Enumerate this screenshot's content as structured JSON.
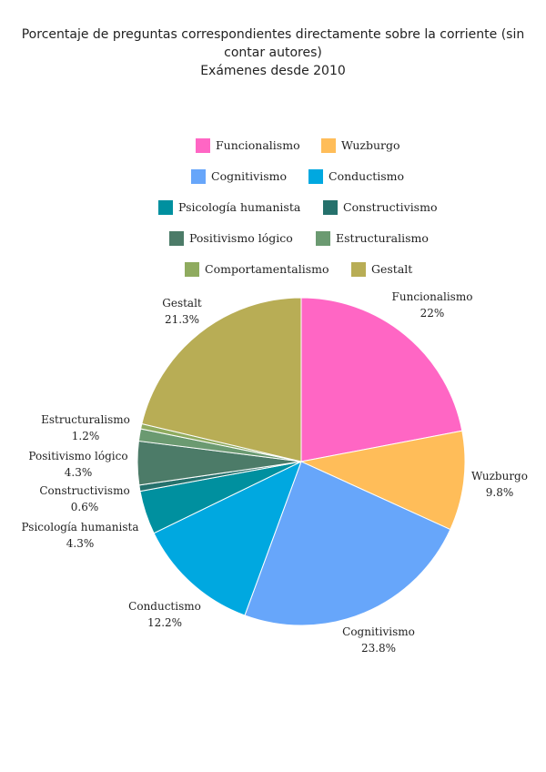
{
  "chart_data": {
    "type": "pie",
    "title_lines": [
      "Porcentaje de preguntas correspondientes directamente sobre la corriente (sin",
      "contar autores)",
      "Exámenes desde 2010"
    ],
    "categories": [
      "Funcionalismo",
      "Wuzburgo",
      "Cognitivismo",
      "Conductismo",
      "Psicología humanista",
      "Constructivismo",
      "Positivismo lógico",
      "Estructuralismo",
      "Comportamentalismo",
      "Gestalt"
    ],
    "values": [
      22,
      9.8,
      23.8,
      12.2,
      4.3,
      0.6,
      4.3,
      1.2,
      0.5,
      21.3
    ],
    "value_labels": [
      "22%",
      "9.8%",
      "23.8%",
      "12.2%",
      "4.3%",
      "0.6%",
      "4.3%",
      "1.2%",
      "",
      "21.3%"
    ],
    "colors": [
      "#ff66c4",
      "#ffbd59",
      "#67a6fa",
      "#00a8e0",
      "#00909f",
      "#25716c",
      "#4c7b68",
      "#6b9a71",
      "#8fab5f",
      "#b8ad55"
    ],
    "legend_placement": "top-center"
  }
}
